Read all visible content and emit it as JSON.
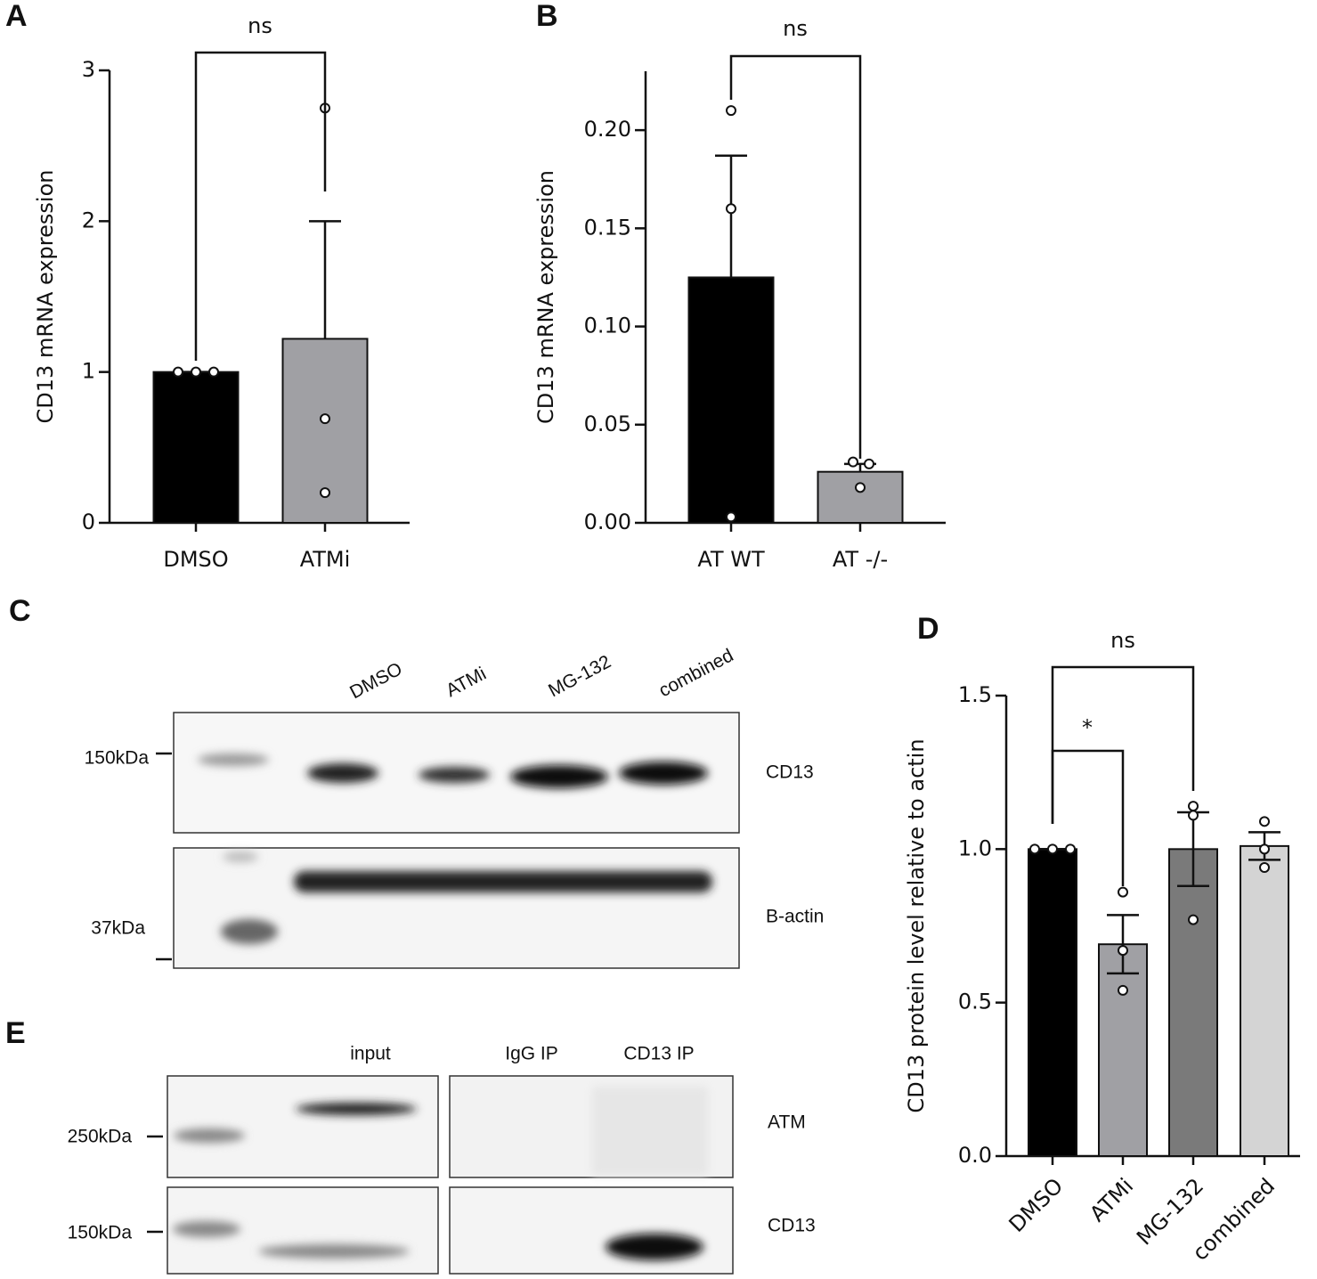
{
  "panels": [
    "A",
    "B",
    "C",
    "D",
    "E"
  ],
  "chart_data": [
    {
      "type": "bar",
      "ylabel": "CD13 mRNA expression",
      "categories": [
        "DMSO",
        "ATMi"
      ],
      "values": [
        1.0,
        1.22
      ],
      "errors": [
        0,
        0.78
      ],
      "error_bars": "upper",
      "points": [
        [
          1.0,
          1.0,
          1.0
        ],
        [
          2.75,
          0.69,
          0.2
        ]
      ],
      "colors": [
        "#000000",
        "#a0a0a4"
      ],
      "ylim": [
        0,
        3
      ],
      "yticks": [
        0,
        1,
        2,
        3
      ],
      "annotations": [
        "ns"
      ]
    },
    {
      "type": "bar",
      "ylabel": "CD13 mRNA expression",
      "categories": [
        "AT WT",
        "AT -/-"
      ],
      "values": [
        0.125,
        0.026
      ],
      "errors": [
        0.062,
        0.004
      ],
      "error_bars": "upper",
      "points": [
        [
          0.21,
          0.16,
          0.003
        ],
        [
          0.031,
          0.03,
          0.018
        ]
      ],
      "colors": [
        "#000000",
        "#a0a0a4"
      ],
      "ylim": [
        0,
        0.23
      ],
      "yticks": [
        {
          "value": 0,
          "label": "0.00"
        },
        {
          "value": 0.05,
          "label": "0.05"
        },
        {
          "value": 0.1,
          "label": "0.10"
        },
        {
          "value": 0.15,
          "label": "0.15"
        },
        {
          "value": 0.2,
          "label": "0.20"
        }
      ],
      "annotations": [
        "ns"
      ]
    },
    {
      "type": "bar",
      "ylabel": "CD13 protein level relative to actin",
      "categories": [
        "DMSO",
        "ATMi",
        "MG-132",
        "combined"
      ],
      "values": [
        1.0,
        0.69,
        1.0,
        1.01
      ],
      "errors": [
        0,
        0.095,
        0.12,
        0.045
      ],
      "error_bars": "both",
      "points": [
        [
          1.0,
          1.0,
          1.0
        ],
        [
          0.86,
          0.67,
          0.54
        ],
        [
          1.14,
          1.11,
          0.77
        ],
        [
          1.09,
          1.0,
          0.94
        ]
      ],
      "colors": [
        "#000000",
        "#a0a0a4",
        "#7a7a7a",
        "#d4d4d4"
      ],
      "ylim": [
        0,
        1.5
      ],
      "yticks": [
        {
          "value": 0,
          "label": "0.0"
        },
        {
          "value": 0.5,
          "label": "0.5"
        },
        {
          "value": 1,
          "label": "1.0"
        },
        {
          "value": 1.5,
          "label": "1.5"
        }
      ],
      "annotations": [
        "*",
        "ns"
      ]
    }
  ],
  "blot_c": {
    "lanes": [
      "DMSO",
      "ATMi",
      "MG-132",
      "combined"
    ],
    "markers": [
      "150kDa",
      "37kDa"
    ],
    "proteins": [
      "CD13",
      "B-actin"
    ]
  },
  "blot_e": {
    "groups": [
      "input",
      "IgG IP",
      "CD13 IP"
    ],
    "markers": [
      "250kDa",
      "150kDa"
    ],
    "proteins": [
      "ATM",
      "CD13"
    ]
  }
}
